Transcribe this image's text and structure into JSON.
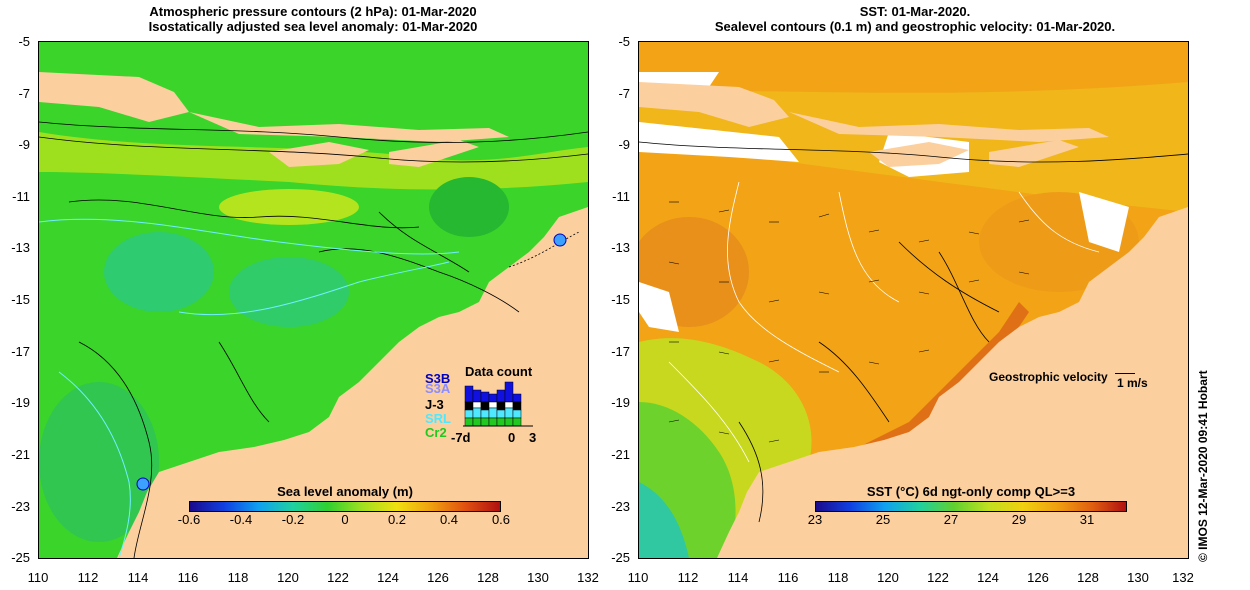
{
  "left_panel": {
    "title_line1": "Atmospheric pressure contours (2 hPa): 01-Mar-2020",
    "title_line2": "Isostatically adjusted sea level anomaly: 01-Mar-2020",
    "y_ticks": [
      "-5",
      "-7",
      "-9",
      "-11",
      "-13",
      "-15",
      "-17",
      "-19",
      "-21",
      "-23",
      "-25"
    ],
    "x_ticks": [
      "110",
      "112",
      "114",
      "116",
      "118",
      "120",
      "122",
      "124",
      "126",
      "128",
      "130",
      "132"
    ],
    "colorbar_title": "Sea level anomaly (m)",
    "colorbar_ticks": [
      "-0.6",
      "-0.4",
      "-0.2",
      "0",
      "0.2",
      "0.4",
      "0.6"
    ],
    "data_count": {
      "title": "Data count",
      "labels": [
        "S3B",
        "S3A",
        "J-3",
        "SRL",
        "Cr2"
      ],
      "axis_labels": [
        "-7d",
        "0",
        "3"
      ]
    }
  },
  "right_panel": {
    "title_line1": "SST: 01-Mar-2020.",
    "title_line2": "Sealevel contours (0.1 m) and geostrophic velocity: 01-Mar-2020.",
    "y_ticks": [
      "-5",
      "-7",
      "-9",
      "-11",
      "-13",
      "-15",
      "-17",
      "-19",
      "-21",
      "-23",
      "-25"
    ],
    "x_ticks": [
      "110",
      "112",
      "114",
      "116",
      "118",
      "120",
      "122",
      "124",
      "126",
      "128",
      "130",
      "132"
    ],
    "velocity_label": "Geostrophic velocity",
    "velocity_scale": "1 m/s",
    "colorbar_title": "SST (°C) 6d ngt-only comp QL>=3",
    "colorbar_ticks": [
      "23",
      "25",
      "27",
      "29",
      "31"
    ]
  },
  "credit": "© IMOS 12-Mar-2020 09:41 Hobart",
  "colors": {
    "land": "#fccf9e",
    "sea_green": "#34d22a",
    "sst_orange": "#f2a316"
  }
}
